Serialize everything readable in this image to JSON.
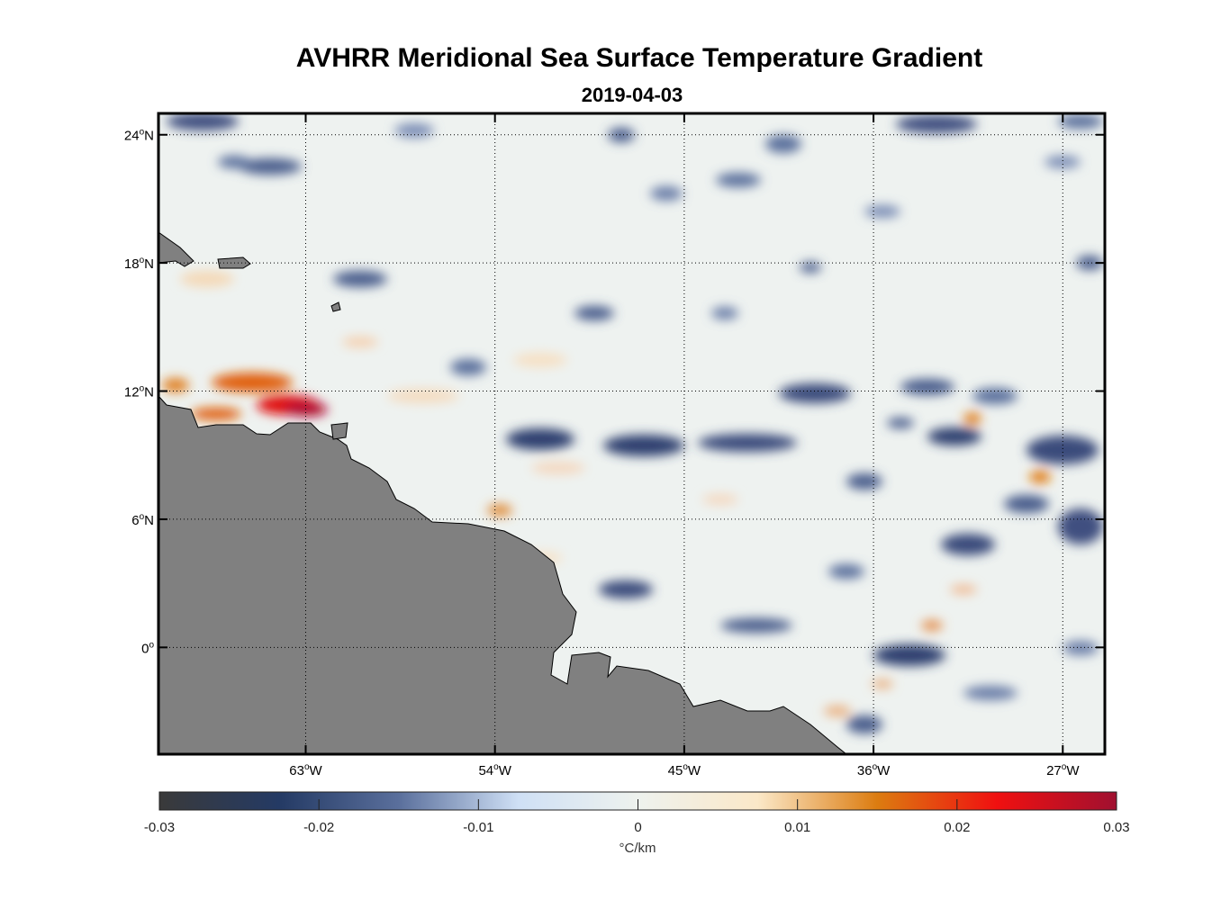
{
  "title": "AVHRR Meridional Sea Surface Temperature Gradient",
  "date": "2019-04-03",
  "chart_data": {
    "type": "heatmap",
    "title": "AVHRR Meridional Sea Surface Temperature Gradient",
    "subtitle": "2019-04-03",
    "lon_range": [
      -70,
      -25
    ],
    "lat_range": [
      -5,
      25
    ],
    "x_ticks": [
      {
        "v": -63,
        "label": "63",
        "suffix": "W"
      },
      {
        "v": -54,
        "label": "54",
        "suffix": "W"
      },
      {
        "v": -45,
        "label": "45",
        "suffix": "W"
      },
      {
        "v": -36,
        "label": "36",
        "suffix": "W"
      },
      {
        "v": -27,
        "label": "27",
        "suffix": "W"
      }
    ],
    "y_ticks": [
      {
        "v": 24,
        "label": "24",
        "suffix": "N"
      },
      {
        "v": 18,
        "label": "18",
        "suffix": "N"
      },
      {
        "v": 12,
        "label": "12",
        "suffix": "N"
      },
      {
        "v": 6,
        "label": "6",
        "suffix": "N"
      },
      {
        "v": 0,
        "label": "0",
        "suffix": ""
      }
    ],
    "colorbar": {
      "min": -0.03,
      "max": 0.03,
      "ticks": [
        "-0.03",
        "-0.02",
        "-0.01",
        "0",
        "0.01",
        "0.02",
        "0.03"
      ],
      "label": "°C/km",
      "stops": [
        "#3a3a3a",
        "#243a64",
        "#5a6f9c",
        "#cfe0f5",
        "#eef2ee",
        "#fbe8c8",
        "#dc7c10",
        "#f01010",
        "#a01030"
      ]
    },
    "land_color": "#808080",
    "grid": true
  }
}
